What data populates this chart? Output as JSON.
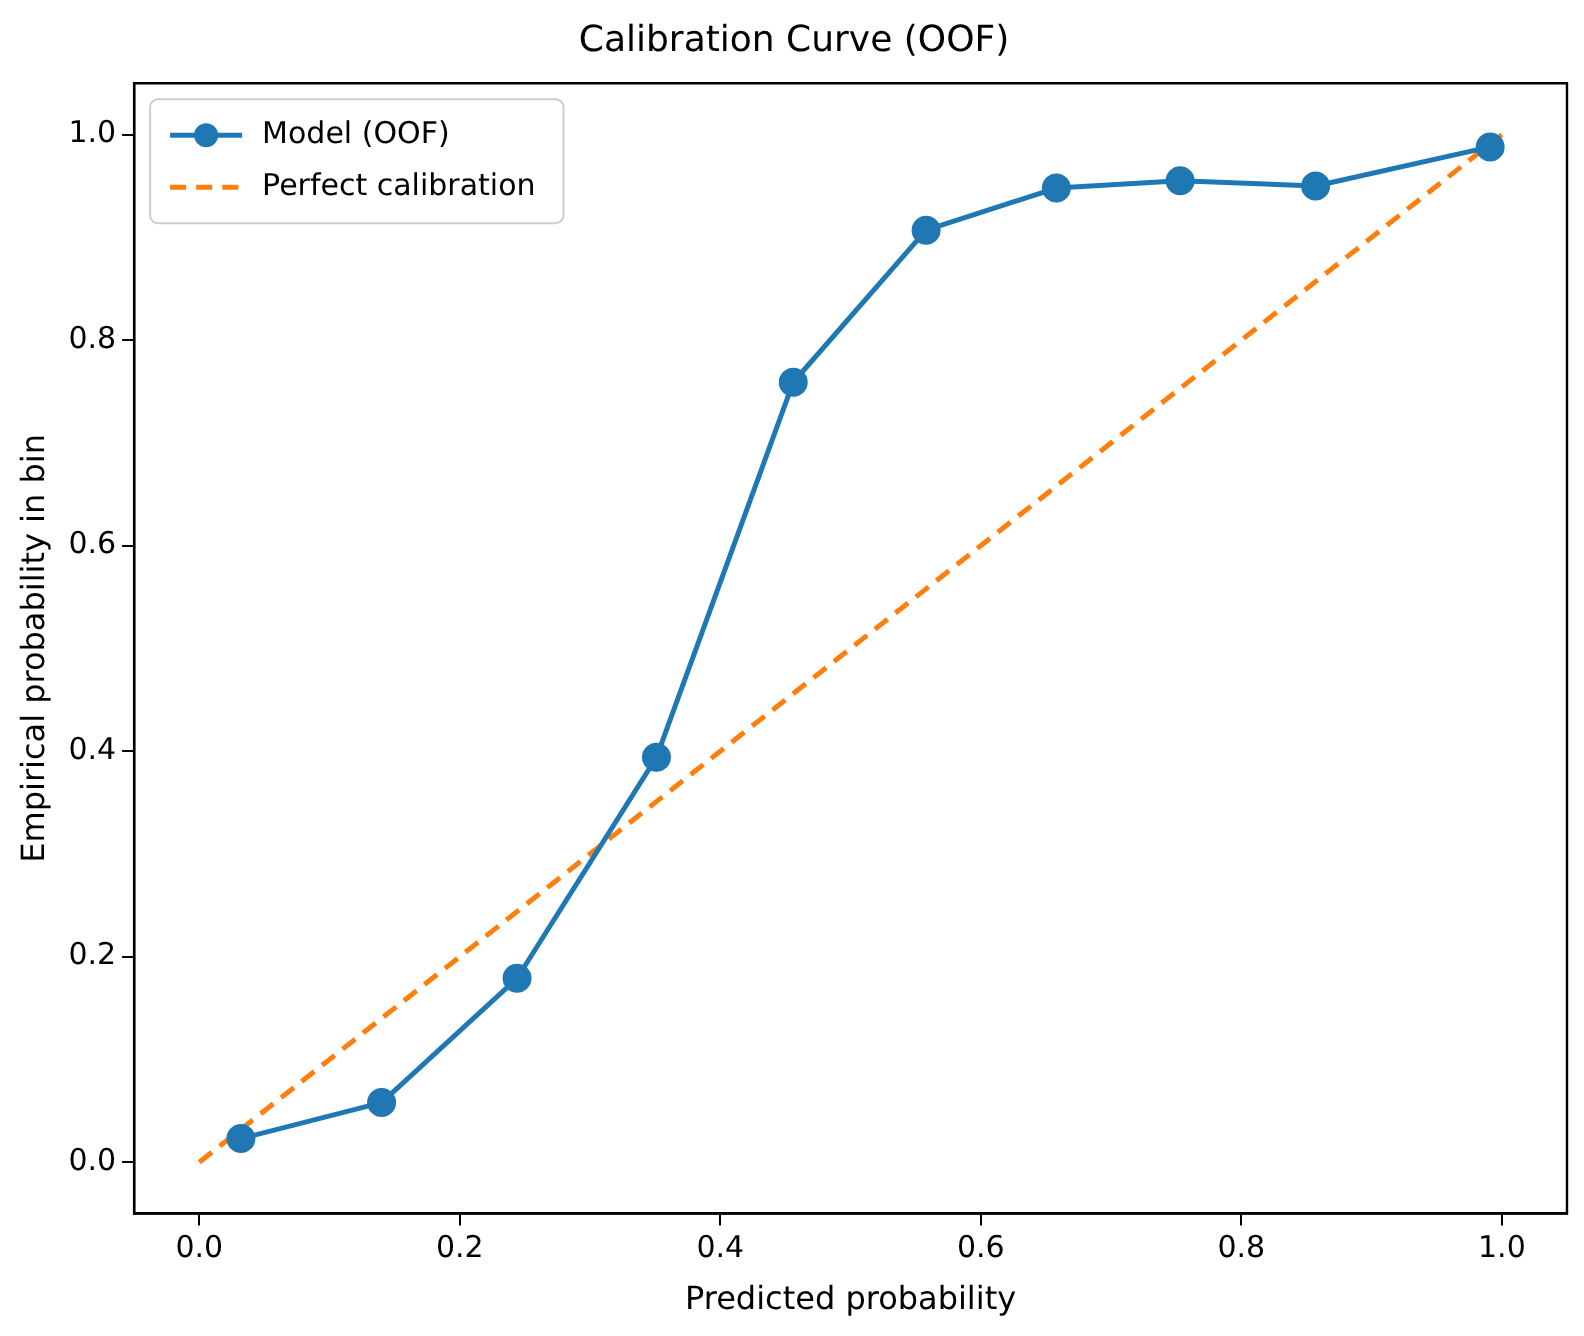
{
  "chart_data": {
    "type": "line",
    "title": "Calibration Curve (OOF)",
    "xlabel": "Predicted probability",
    "ylabel": "Empirical probability in bin",
    "series": [
      {
        "name": "Model (OOF)",
        "color": "#1f77b4",
        "marker": "circle",
        "line_style": "solid",
        "x": [
          0.032,
          0.14,
          0.244,
          0.351,
          0.456,
          0.558,
          0.658,
          0.753,
          0.857,
          0.991
        ],
        "values": [
          0.023,
          0.058,
          0.179,
          0.394,
          0.759,
          0.907,
          0.948,
          0.955,
          0.95,
          0.988
        ]
      },
      {
        "name": "Perfect calibration",
        "color": "#ff7f0e",
        "marker": "none",
        "line_style": "dashed",
        "x": [
          0,
          1
        ],
        "values": [
          0,
          1
        ]
      }
    ],
    "xlim": [
      -0.05,
      1.05
    ],
    "ylim": [
      -0.05,
      1.05
    ],
    "xticks": [
      {
        "value": 0,
        "label": "0.0"
      },
      {
        "value": 0.2,
        "label": "0.2"
      },
      {
        "value": 0.4,
        "label": "0.4"
      },
      {
        "value": 0.6,
        "label": "0.6"
      },
      {
        "value": 0.8,
        "label": "0.8"
      },
      {
        "value": 1,
        "label": "1.0"
      }
    ],
    "yticks": [
      {
        "value": 0,
        "label": "0.0"
      },
      {
        "value": 0.2,
        "label": "0.2"
      },
      {
        "value": 0.4,
        "label": "0.4"
      },
      {
        "value": 0.6,
        "label": "0.6"
      },
      {
        "value": 0.8,
        "label": "0.8"
      },
      {
        "value": 1,
        "label": "1.0"
      }
    ],
    "grid": false,
    "legend": "top left"
  }
}
